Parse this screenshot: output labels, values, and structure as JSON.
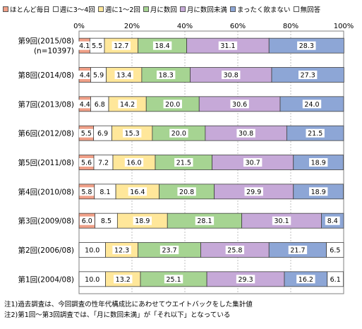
{
  "chart_data": {
    "type": "bar",
    "orientation": "horizontal",
    "stacked": true,
    "xlim": [
      0,
      100
    ],
    "x_ticks": [
      "0%",
      "20%",
      "40%",
      "60%",
      "80%",
      "100%"
    ],
    "legend_position": "top",
    "categories": [
      [
        "第9回(2015/08)",
        "(n=10397)"
      ],
      [
        "第8回(2014/08)"
      ],
      [
        "第7回(2013/08)"
      ],
      [
        "第6回(2012/08)"
      ],
      [
        "第5回(2011/08)"
      ],
      [
        "第4回(2010/08)"
      ],
      [
        "第3回(2009/08)"
      ],
      [
        "第2回(2006/08)"
      ],
      [
        "第1回(2004/08)"
      ]
    ],
    "series": [
      {
        "name": "ほとんど毎日",
        "color": "#f0a088",
        "values": [
          4.1,
          4.4,
          4.4,
          5.5,
          5.6,
          5.8,
          6.0,
          0,
          0
        ]
      },
      {
        "name": "週に3～4回",
        "color": "#ffffff",
        "values": [
          5.5,
          5.9,
          6.8,
          6.9,
          7.2,
          8.1,
          8.5,
          10.0,
          10.0
        ]
      },
      {
        "name": "週に1～2回",
        "color": "#ffe79a",
        "values": [
          12.7,
          13.4,
          14.2,
          15.3,
          16.0,
          16.4,
          18.9,
          12.3,
          13.2
        ]
      },
      {
        "name": "月に数回",
        "color": "#a6d492",
        "values": [
          18.4,
          18.3,
          20.0,
          20.0,
          21.5,
          20.8,
          28.1,
          23.7,
          25.1
        ]
      },
      {
        "name": "月に数回未満",
        "color": "#c6a9d8",
        "values": [
          31.1,
          30.8,
          30.6,
          30.8,
          30.7,
          29.9,
          30.1,
          25.8,
          29.3
        ]
      },
      {
        "name": "まったく飲まない",
        "color": "#8da6d6",
        "values": [
          28.3,
          27.3,
          24.0,
          21.5,
          18.9,
          18.9,
          8.4,
          21.7,
          16.2
        ]
      },
      {
        "name": "無回答",
        "color": "#ffffff",
        "values": [
          0,
          0,
          0,
          0,
          0,
          0,
          0,
          6.5,
          6.1
        ]
      }
    ]
  },
  "notes": [
    "注1)過去調査は、今回調査の性年代構成比にあわせてウエイトバックをした集計値",
    "注2)第1回～第3回調査では、「月に数回未満」が「それ以下」となっている"
  ]
}
